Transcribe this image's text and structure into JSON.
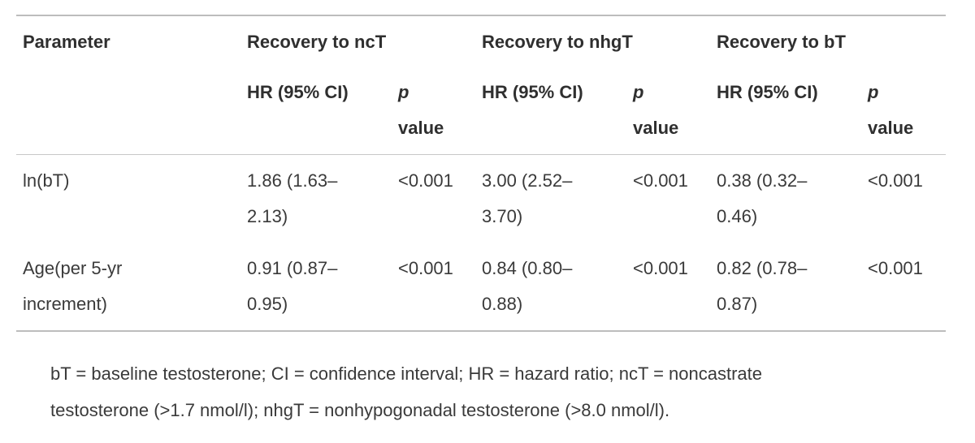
{
  "table": {
    "header": {
      "parameter": "Parameter",
      "groups": [
        "Recovery to ncT",
        "Recovery to nhgT",
        "Recovery to bT"
      ],
      "hr_label": "HR (95% CI)",
      "p_label_1": "p",
      "p_label_2": "value"
    },
    "rows": [
      {
        "parameter": [
          "ln(bT)"
        ],
        "values": [
          {
            "hr": [
              "1.86 (1.63–",
              "2.13)"
            ],
            "p": "<0.001"
          },
          {
            "hr": [
              "3.00 (2.52–",
              "3.70)"
            ],
            "p": "<0.001"
          },
          {
            "hr": [
              "0.38 (0.32–",
              "0.46)"
            ],
            "p": "<0.001"
          }
        ]
      },
      {
        "parameter": [
          "Age(per 5-yr",
          "increment)"
        ],
        "values": [
          {
            "hr": [
              "0.91 (0.87–",
              "0.95)"
            ],
            "p": "<0.001"
          },
          {
            "hr": [
              "0.84 (0.80–",
              "0.88)"
            ],
            "p": "<0.001"
          },
          {
            "hr": [
              "0.82 (0.78–",
              "0.87)"
            ],
            "p": "<0.001"
          }
        ]
      }
    ]
  },
  "footnote": {
    "line1": "bT = baseline testosterone; CI = confidence interval; HR = hazard ratio; ncT = noncastrate",
    "line2": "testosterone (>1.7 nmol/l); nhgT = nonhypogonadal testosterone (>8.0 nmol/l)."
  }
}
